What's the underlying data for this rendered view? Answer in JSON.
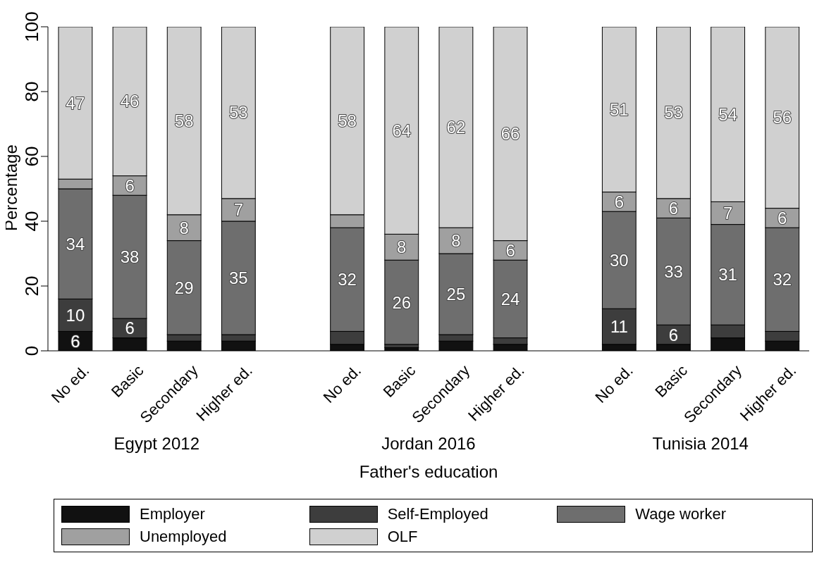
{
  "chart_data": {
    "type": "bar",
    "stacked": true,
    "xlabel": "Father's education",
    "ylabel": "Percentage",
    "categories": [
      "No ed.",
      "Basic",
      "Secondary",
      "Higher ed.",
      null,
      "No ed.",
      "Basic",
      "Secondary",
      "Higher ed.",
      null,
      "No ed.",
      "Basic",
      "Secondary",
      "Higher ed."
    ],
    "annotations": [
      "Egypt 2012",
      "Jordan 2016",
      "Tunisia 2014"
    ],
    "ylim": [
      0,
      100
    ],
    "yticks": [
      0,
      20,
      40,
      60,
      80,
      100
    ],
    "grid": false,
    "legend": "bottom",
    "series": [
      {
        "name": "Employer",
        "color": "#111111",
        "values": [
          6,
          4,
          3,
          3,
          null,
          2,
          1,
          3,
          2,
          null,
          2,
          2,
          4,
          3
        ],
        "value_labels": [
          "6",
          null,
          null,
          null,
          null,
          null,
          null,
          null,
          null,
          null,
          null,
          null,
          null,
          null
        ]
      },
      {
        "name": "Self-Employed",
        "color": "#3d3d3d",
        "values": [
          10,
          6,
          2,
          2,
          null,
          4,
          1,
          2,
          2,
          null,
          11,
          6,
          4,
          3
        ],
        "value_labels": [
          "10",
          "6",
          null,
          null,
          null,
          null,
          null,
          null,
          null,
          null,
          "11",
          "6",
          null,
          null
        ]
      },
      {
        "name": "Wage worker",
        "color": "#6e6e6e",
        "values": [
          34,
          38,
          29,
          35,
          null,
          32,
          26,
          25,
          24,
          null,
          30,
          33,
          31,
          32
        ],
        "value_labels": [
          "34",
          "38",
          "29",
          "35",
          null,
          "32",
          "26",
          "25",
          "24",
          null,
          "30",
          "33",
          "31",
          "32"
        ]
      },
      {
        "name": "Unemployed",
        "color": "#a0a0a0",
        "values": [
          3,
          6,
          8,
          7,
          null,
          4,
          8,
          8,
          6,
          null,
          6,
          6,
          7,
          6
        ],
        "value_labels": [
          null,
          "6",
          "8",
          "7",
          null,
          null,
          "8",
          "8",
          "6",
          null,
          "6",
          "6",
          "7",
          "6"
        ]
      },
      {
        "name": "OLF",
        "color": "#d0d0d0",
        "values": [
          47,
          46,
          58,
          53,
          null,
          58,
          64,
          62,
          66,
          null,
          51,
          53,
          54,
          56
        ],
        "value_labels": [
          "47",
          "46",
          "58",
          "53",
          null,
          "58",
          "64",
          "62",
          "66",
          null,
          "51",
          "53",
          "54",
          "56"
        ]
      }
    ]
  }
}
